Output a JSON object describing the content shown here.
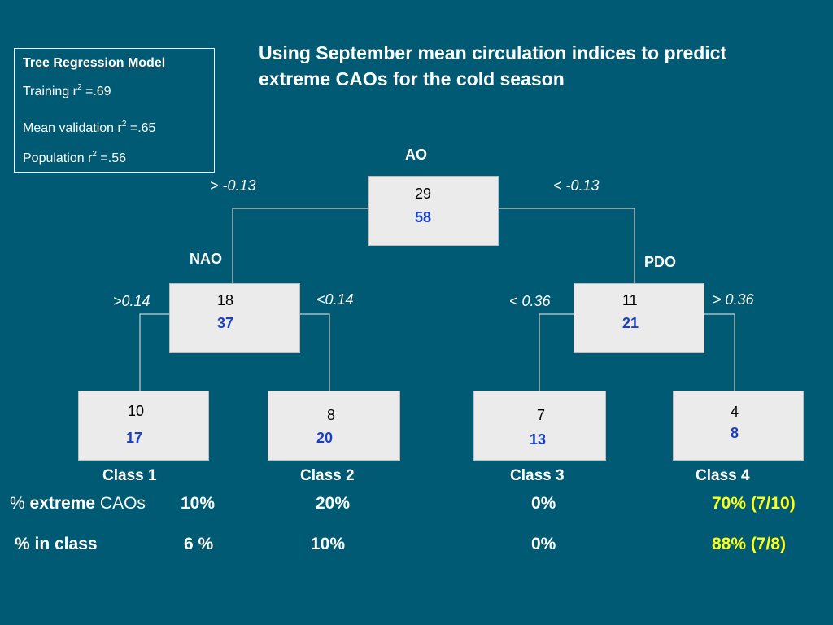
{
  "model": {
    "title": "Tree Regression Model",
    "training_label": "Training r",
    "training_value": " =.69",
    "validation_label": "Mean validation r",
    "validation_value": " =.65",
    "population_label": "Population r",
    "population_value": "  =.56",
    "superscript": "2"
  },
  "title": {
    "line1": "Using September mean circulation indices to predict",
    "line2": "extreme CAOs for the cold season"
  },
  "tree": {
    "root": {
      "variable": "AO",
      "count": "29",
      "value": "58",
      "left_split": "> -0.13",
      "right_split": "< -0.13"
    },
    "left": {
      "variable": "NAO",
      "count": "18",
      "value": "37",
      "left_split": ">0.14",
      "right_split": "<0.14"
    },
    "right": {
      "variable": "PDO",
      "count": "11",
      "value": "21",
      "left_split": "< 0.36",
      "right_split": "> 0.36"
    },
    "leaves": [
      {
        "count": "10",
        "value": "17",
        "label": "Class 1"
      },
      {
        "count": "8",
        "value": "20",
        "label": "Class 2"
      },
      {
        "count": "7",
        "value": "13",
        "label": "Class 3"
      },
      {
        "count": "4",
        "value": "8",
        "label": "Class 4"
      }
    ]
  },
  "rows": {
    "extreme_prefix": "% ",
    "extreme_bold": "extreme",
    "extreme_suffix": " CAOs",
    "extreme_values": [
      "10%",
      "20%",
      "0%",
      "70% (7/10)"
    ],
    "inclass_label": "% in class",
    "inclass_values": [
      "6 %",
      "10%",
      "0%",
      "88% (7/8)"
    ]
  },
  "colors": {
    "background": "#005a73",
    "node_fill": "#ebebeb",
    "value_blue": "#1a3fc4",
    "highlight_yellow": "#ffff1a"
  }
}
